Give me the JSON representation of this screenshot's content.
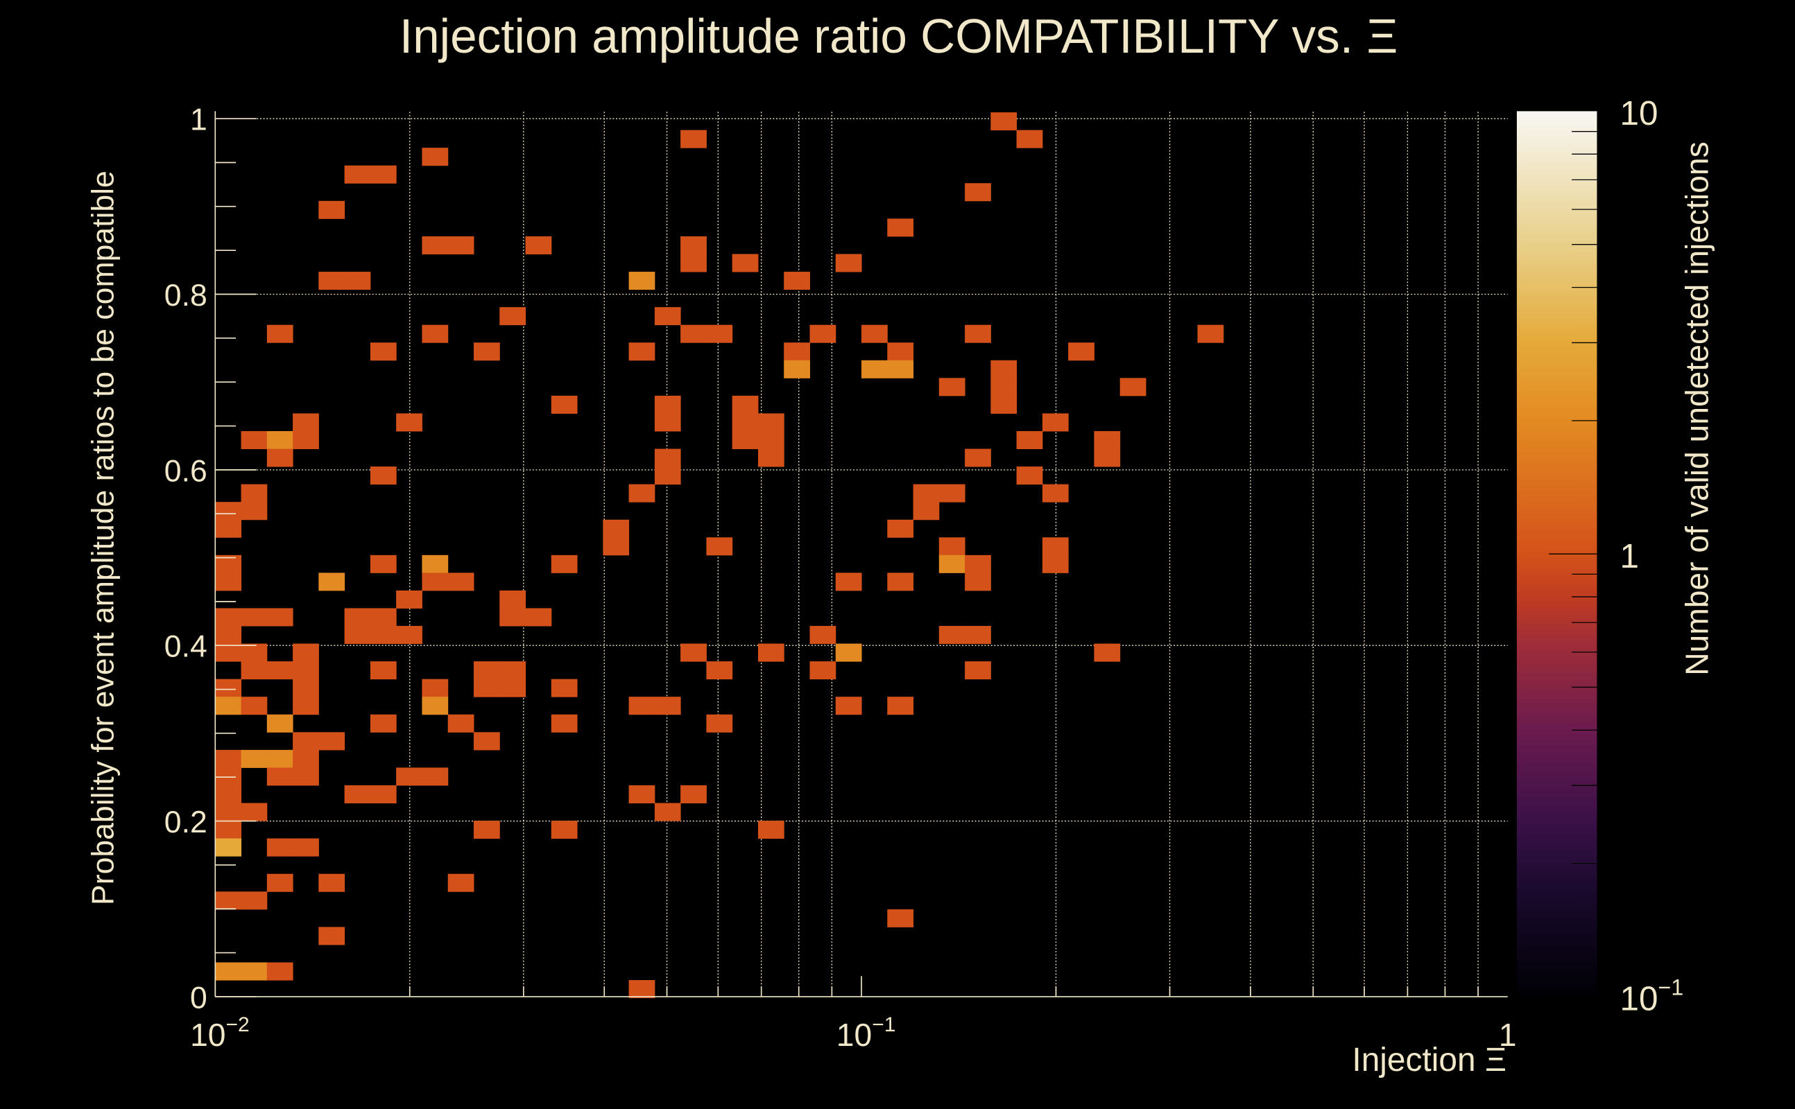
{
  "chart_data": {
    "type": "heatmap",
    "title": "Injection amplitude ratio COMPATIBILITY vs.  Ξ",
    "xlabel": "Injection Ξ",
    "ylabel": "Probability for event amplitude ratios to be compatible",
    "colorbar_label": "Number of valid undetected injections",
    "x_axis": {
      "scale": "log",
      "range": [
        0.01,
        1
      ],
      "bins": 50,
      "grid": true,
      "ticks": [
        {
          "value": 0.01,
          "base": "10",
          "exp": "−2"
        },
        {
          "value": 0.1,
          "base": "10",
          "exp": "−1"
        },
        {
          "value": 1,
          "base": "1",
          "exp": ""
        }
      ]
    },
    "y_axis": {
      "scale": "linear",
      "range": [
        0,
        1
      ],
      "bins": 50,
      "grid": true,
      "ticks": [
        {
          "value": 0,
          "label": "0"
        },
        {
          "value": 0.2,
          "label": "0.2"
        },
        {
          "value": 0.4,
          "label": "0.4"
        },
        {
          "value": 0.6,
          "label": "0.6"
        },
        {
          "value": 0.8,
          "label": "0.8"
        },
        {
          "value": 1,
          "label": "1"
        }
      ]
    },
    "z_axis": {
      "scale": "log",
      "range": [
        0.1,
        10
      ],
      "ticks": [
        {
          "value": 10,
          "base": "10",
          "exp": ""
        },
        {
          "value": 1,
          "base": "1",
          "exp": ""
        },
        {
          "value": 0.1,
          "base": "10",
          "exp": "−1"
        }
      ],
      "colormap": [
        [
          0.0,
          "#000004"
        ],
        [
          0.12,
          "#1a0a2e"
        ],
        [
          0.2,
          "#3b1148"
        ],
        [
          0.3,
          "#6a1b4e"
        ],
        [
          0.4,
          "#a02d38"
        ],
        [
          0.45,
          "#c03c22"
        ],
        [
          0.5,
          "#d4521a"
        ],
        [
          0.65,
          "#e38a22"
        ],
        [
          0.74,
          "#e5aa3a"
        ],
        [
          0.85,
          "#e8d08a"
        ],
        [
          1.0,
          "#f8f7f3"
        ]
      ]
    },
    "cells_format": "[x_bin_index, y_bin_index, count]",
    "cells": [
      [
        30,
        49,
        1
      ],
      [
        18,
        48,
        1
      ],
      [
        31,
        48,
        1
      ],
      [
        8,
        47,
        1
      ],
      [
        5,
        46,
        1
      ],
      [
        6,
        46,
        1
      ],
      [
        29,
        45,
        1
      ],
      [
        4,
        44,
        1
      ],
      [
        26,
        43,
        1
      ],
      [
        8,
        42,
        1
      ],
      [
        9,
        42,
        1
      ],
      [
        12,
        42,
        1
      ],
      [
        18,
        42,
        1
      ],
      [
        18,
        41,
        1
      ],
      [
        20,
        41,
        1
      ],
      [
        24,
        41,
        1
      ],
      [
        4,
        40,
        1
      ],
      [
        5,
        40,
        1
      ],
      [
        16,
        40,
        2
      ],
      [
        22,
        40,
        1
      ],
      [
        11,
        38,
        1
      ],
      [
        17,
        38,
        1
      ],
      [
        2,
        37,
        1
      ],
      [
        8,
        37,
        1
      ],
      [
        18,
        37,
        1
      ],
      [
        19,
        37,
        1
      ],
      [
        23,
        37,
        1
      ],
      [
        25,
        37,
        1
      ],
      [
        29,
        37,
        1
      ],
      [
        38,
        37,
        1
      ],
      [
        6,
        36,
        1
      ],
      [
        10,
        36,
        1
      ],
      [
        16,
        36,
        1
      ],
      [
        22,
        36,
        1
      ],
      [
        26,
        36,
        1
      ],
      [
        33,
        36,
        1
      ],
      [
        22,
        35,
        2
      ],
      [
        25,
        35,
        2
      ],
      [
        26,
        35,
        2
      ],
      [
        30,
        35,
        1
      ],
      [
        28,
        34,
        1
      ],
      [
        30,
        34,
        1
      ],
      [
        35,
        34,
        1
      ],
      [
        13,
        33,
        1
      ],
      [
        17,
        33,
        1
      ],
      [
        20,
        33,
        1
      ],
      [
        30,
        33,
        1
      ],
      [
        3,
        32,
        1
      ],
      [
        7,
        32,
        1
      ],
      [
        17,
        32,
        1
      ],
      [
        20,
        32,
        1
      ],
      [
        21,
        32,
        1
      ],
      [
        32,
        32,
        1
      ],
      [
        1,
        31,
        1
      ],
      [
        2,
        31,
        2
      ],
      [
        3,
        31,
        1
      ],
      [
        20,
        31,
        1
      ],
      [
        21,
        31,
        1
      ],
      [
        31,
        31,
        1
      ],
      [
        34,
        31,
        1
      ],
      [
        2,
        30,
        1
      ],
      [
        17,
        30,
        1
      ],
      [
        21,
        30,
        1
      ],
      [
        29,
        30,
        1
      ],
      [
        34,
        30,
        1
      ],
      [
        6,
        29,
        1
      ],
      [
        17,
        29,
        1
      ],
      [
        31,
        29,
        1
      ],
      [
        1,
        28,
        1
      ],
      [
        16,
        28,
        1
      ],
      [
        27,
        28,
        1
      ],
      [
        28,
        28,
        1
      ],
      [
        32,
        28,
        1
      ],
      [
        0,
        27,
        1
      ],
      [
        1,
        27,
        1
      ],
      [
        27,
        27,
        1
      ],
      [
        0,
        26,
        1
      ],
      [
        15,
        26,
        1
      ],
      [
        26,
        26,
        1
      ],
      [
        15,
        25,
        1
      ],
      [
        19,
        25,
        1
      ],
      [
        28,
        25,
        1
      ],
      [
        32,
        25,
        1
      ],
      [
        0,
        24,
        1
      ],
      [
        6,
        24,
        1
      ],
      [
        8,
        24,
        2
      ],
      [
        13,
        24,
        1
      ],
      [
        28,
        24,
        2
      ],
      [
        29,
        24,
        1
      ],
      [
        32,
        24,
        1
      ],
      [
        0,
        23,
        1
      ],
      [
        4,
        23,
        2
      ],
      [
        8,
        23,
        1
      ],
      [
        9,
        23,
        1
      ],
      [
        24,
        23,
        1
      ],
      [
        26,
        23,
        1
      ],
      [
        29,
        23,
        1
      ],
      [
        7,
        22,
        1
      ],
      [
        11,
        22,
        1
      ],
      [
        0,
        21,
        1
      ],
      [
        1,
        21,
        1
      ],
      [
        2,
        21,
        1
      ],
      [
        5,
        21,
        1
      ],
      [
        6,
        21,
        1
      ],
      [
        11,
        21,
        1
      ],
      [
        12,
        21,
        1
      ],
      [
        0,
        20,
        1
      ],
      [
        5,
        20,
        1
      ],
      [
        6,
        20,
        1
      ],
      [
        7,
        20,
        1
      ],
      [
        23,
        20,
        1
      ],
      [
        28,
        20,
        1
      ],
      [
        29,
        20,
        1
      ],
      [
        0,
        19,
        1
      ],
      [
        1,
        19,
        1
      ],
      [
        3,
        19,
        1
      ],
      [
        18,
        19,
        1
      ],
      [
        21,
        19,
        1
      ],
      [
        24,
        19,
        2
      ],
      [
        34,
        19,
        1
      ],
      [
        1,
        18,
        1
      ],
      [
        2,
        18,
        1
      ],
      [
        3,
        18,
        1
      ],
      [
        6,
        18,
        1
      ],
      [
        10,
        18,
        1
      ],
      [
        11,
        18,
        1
      ],
      [
        19,
        18,
        1
      ],
      [
        23,
        18,
        1
      ],
      [
        29,
        18,
        1
      ],
      [
        0,
        17,
        1
      ],
      [
        3,
        17,
        1
      ],
      [
        8,
        17,
        1
      ],
      [
        10,
        17,
        1
      ],
      [
        11,
        17,
        1
      ],
      [
        13,
        17,
        1
      ],
      [
        0,
        16,
        2
      ],
      [
        1,
        16,
        1
      ],
      [
        3,
        16,
        1
      ],
      [
        8,
        16,
        2
      ],
      [
        16,
        16,
        1
      ],
      [
        17,
        16,
        1
      ],
      [
        24,
        16,
        1
      ],
      [
        26,
        16,
        1
      ],
      [
        2,
        15,
        2
      ],
      [
        6,
        15,
        1
      ],
      [
        9,
        15,
        1
      ],
      [
        13,
        15,
        1
      ],
      [
        19,
        15,
        1
      ],
      [
        3,
        14,
        1
      ],
      [
        4,
        14,
        1
      ],
      [
        10,
        14,
        1
      ],
      [
        0,
        13,
        1
      ],
      [
        1,
        13,
        2
      ],
      [
        2,
        13,
        2
      ],
      [
        3,
        13,
        1
      ],
      [
        0,
        12,
        1
      ],
      [
        2,
        12,
        1
      ],
      [
        3,
        12,
        1
      ],
      [
        7,
        12,
        1
      ],
      [
        8,
        12,
        1
      ],
      [
        0,
        11,
        1
      ],
      [
        5,
        11,
        1
      ],
      [
        6,
        11,
        1
      ],
      [
        16,
        11,
        1
      ],
      [
        18,
        11,
        1
      ],
      [
        0,
        10,
        1
      ],
      [
        1,
        10,
        1
      ],
      [
        17,
        10,
        1
      ],
      [
        0,
        9,
        1
      ],
      [
        10,
        9,
        1
      ],
      [
        13,
        9,
        1
      ],
      [
        21,
        9,
        1
      ],
      [
        0,
        8,
        3
      ],
      [
        2,
        8,
        1
      ],
      [
        3,
        8,
        1
      ],
      [
        2,
        6,
        1
      ],
      [
        4,
        6,
        1
      ],
      [
        9,
        6,
        1
      ],
      [
        0,
        5,
        1
      ],
      [
        1,
        5,
        1
      ],
      [
        26,
        4,
        1
      ],
      [
        4,
        3,
        1
      ],
      [
        0,
        1,
        2
      ],
      [
        1,
        1,
        2
      ],
      [
        2,
        1,
        1
      ],
      [
        16,
        0,
        1
      ]
    ]
  }
}
